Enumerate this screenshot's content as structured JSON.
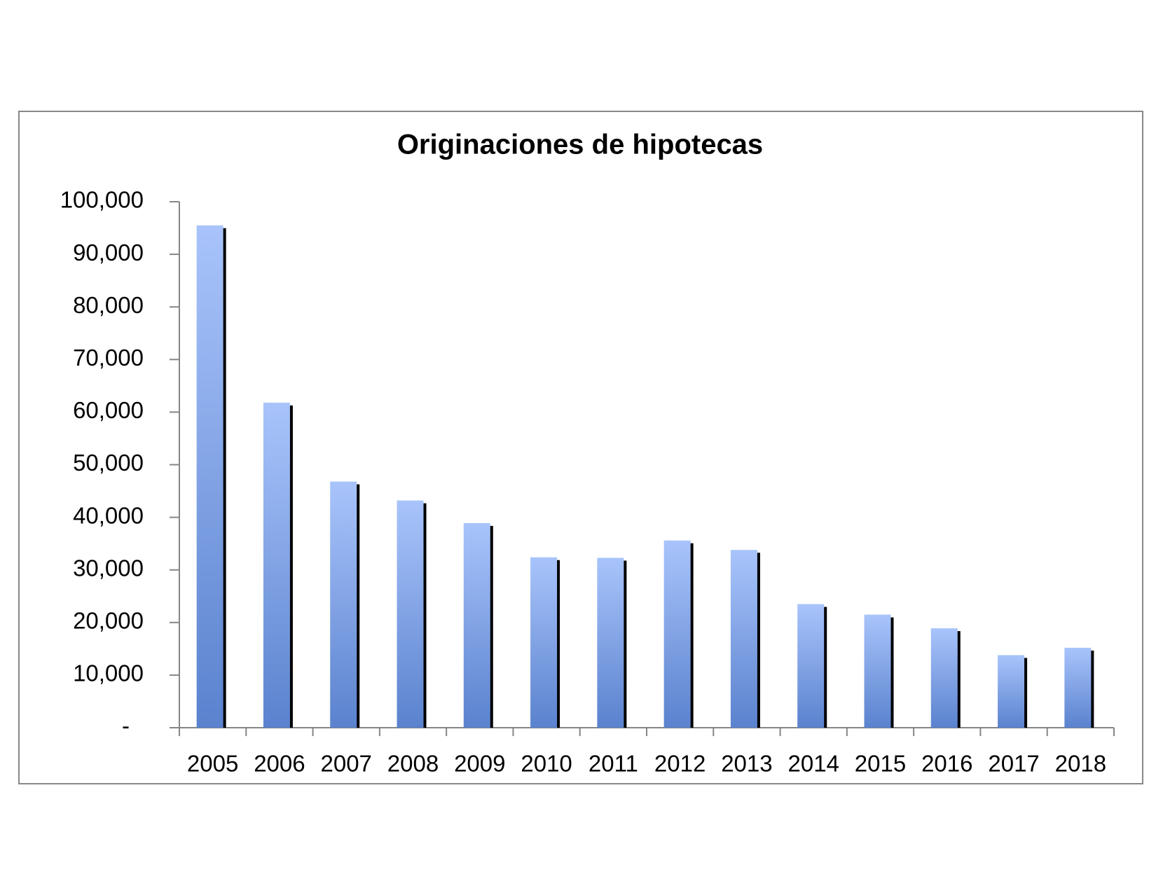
{
  "chart_data": {
    "type": "bar",
    "title": "Originaciones de hipotecas",
    "categories": [
      "2005",
      "2006",
      "2007",
      "2008",
      "2009",
      "2010",
      "2011",
      "2012",
      "2013",
      "2014",
      "2015",
      "2016",
      "2017",
      "2018"
    ],
    "values": [
      95500,
      61800,
      46800,
      43200,
      38900,
      32400,
      32300,
      35600,
      33800,
      23500,
      21500,
      18900,
      13800,
      15200
    ],
    "color": "#a9c4fb",
    "ylim": [
      0,
      100000
    ],
    "yticks": [
      {
        "value": 0,
        "label": "-"
      },
      {
        "value": 10000,
        "label": "10,000"
      },
      {
        "value": 20000,
        "label": "20,000"
      },
      {
        "value": 30000,
        "label": "30,000"
      },
      {
        "value": 40000,
        "label": "40,000"
      },
      {
        "value": 50000,
        "label": "50,000"
      },
      {
        "value": 60000,
        "label": "60,000"
      },
      {
        "value": 70000,
        "label": "70,000"
      },
      {
        "value": 80000,
        "label": "80,000"
      },
      {
        "value": 90000,
        "label": "90,000"
      },
      {
        "value": 100000,
        "label": "100,000"
      }
    ],
    "grid": false
  }
}
